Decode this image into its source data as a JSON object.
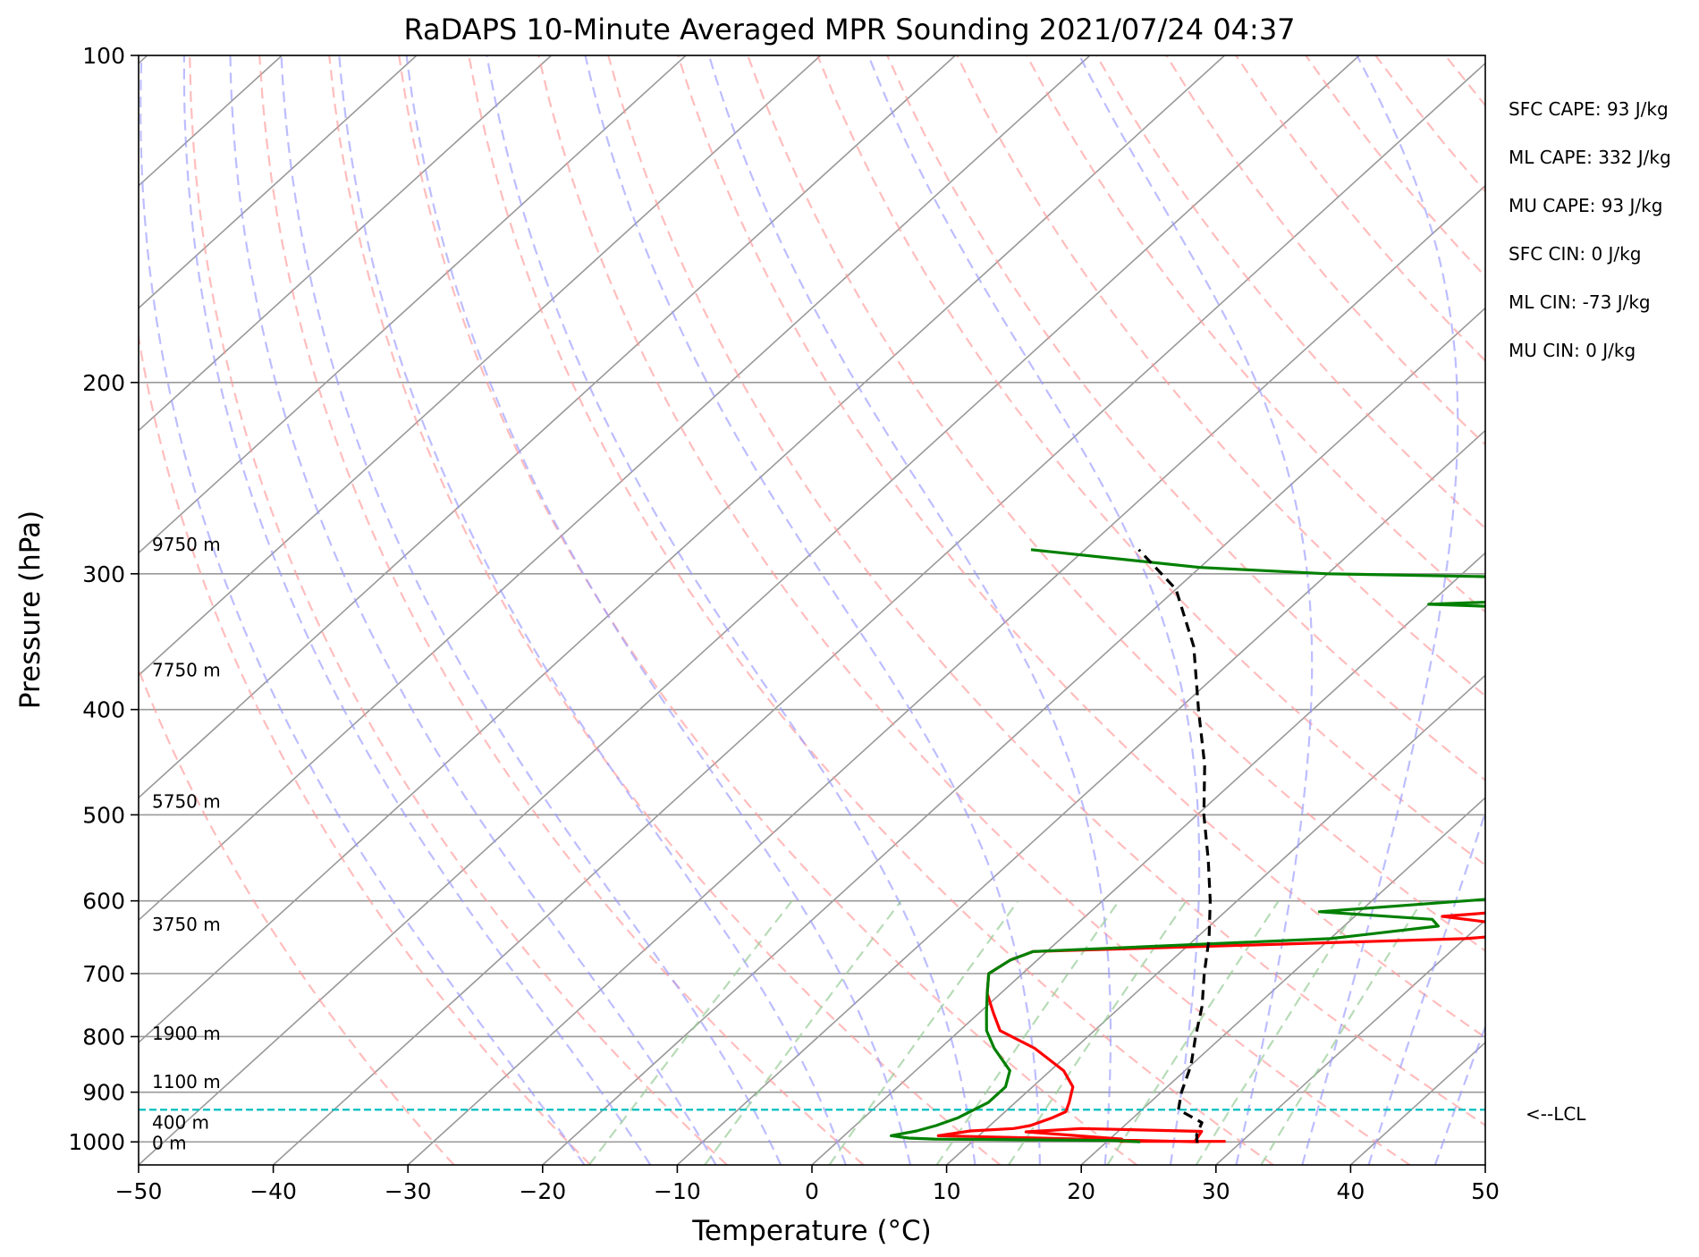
{
  "chart_data": {
    "type": "skew-t log-p sounding",
    "title": "RaDAPS 10-Minute Averaged MPR Sounding 2021/07/24 04:37",
    "xlabel": "Temperature (°C)",
    "ylabel": "Pressure (hPa)",
    "xlim": [
      -50,
      50
    ],
    "ylim": [
      1050,
      100
    ],
    "y_scale": "log",
    "grid": true,
    "x_ticks": [
      "−50",
      "−40",
      "−30",
      "−20",
      "−10",
      "0",
      "10",
      "20",
      "30",
      "40",
      "50"
    ],
    "x_tick_values": [
      -50,
      -40,
      -30,
      -20,
      -10,
      0,
      10,
      20,
      30,
      40,
      50
    ],
    "y_ticks": [
      "100",
      "200",
      "300",
      "400",
      "500",
      "600",
      "700",
      "800",
      "900",
      "1000"
    ],
    "y_tick_values": [
      100,
      200,
      300,
      400,
      500,
      600,
      700,
      800,
      900,
      1000
    ],
    "height_labels": [
      {
        "text": "9750 m",
        "p": 282
      },
      {
        "text": "7750 m",
        "p": 368
      },
      {
        "text": "5750 m",
        "p": 486
      },
      {
        "text": "3750 m",
        "p": 631
      },
      {
        "text": "1900 m",
        "p": 795
      },
      {
        "text": "1100 m",
        "p": 880
      },
      {
        "text": "400 m",
        "p": 960
      },
      {
        "text": "0 m",
        "p": 1002
      }
    ],
    "lcl": {
      "label": "<--LCL",
      "p": 934
    },
    "colors": {
      "temperature": "#ff0000",
      "dewpoint": "#008000",
      "parcel": "#000000",
      "lcl": "#00bfbf",
      "dry_adiabat": "#ff9999",
      "moist_adiabat": "#9999ff",
      "mixing_ratio": "#99cc99",
      "isotherm": "#999999"
    },
    "series": [
      {
        "key": "temperature",
        "points": [
          [
            28.8,
            999
          ],
          [
            21.0,
            999
          ],
          [
            20.9,
            994
          ],
          [
            13.2,
            979
          ],
          [
            17.0,
            972
          ],
          [
            26.2,
            978
          ],
          [
            26.5,
            998
          ],
          [
            26.8,
            1000
          ],
          [
            7.0,
            987
          ],
          [
            9.0,
            977
          ],
          [
            12.0,
            972
          ],
          [
            13.0,
            966
          ],
          [
            14.0,
            950
          ],
          [
            14.5,
            938
          ],
          [
            14.0,
            920
          ],
          [
            13.0,
            890
          ],
          [
            11.0,
            860
          ],
          [
            7.0,
            820
          ],
          [
            3.0,
            790
          ],
          [
            1.0,
            760
          ],
          [
            -1.0,
            730
          ],
          [
            -2.5,
            700
          ],
          [
            -2.0,
            680
          ],
          [
            -1.0,
            668
          ],
          [
            30.0,
            650
          ],
          [
            36.5,
            640
          ],
          [
            26.5,
            620
          ],
          [
            45.0,
            593
          ],
          [
            50.0,
            573
          ],
          [
            48.0,
            548
          ],
          [
            43.0,
            535
          ],
          [
            31.0,
            502
          ],
          [
            44.0,
            490
          ],
          [
            31.5,
            470
          ],
          [
            40.0,
            447
          ],
          [
            41.0,
            430
          ],
          [
            38.5,
            414
          ],
          [
            34.8,
            396
          ],
          [
            32.0,
            385
          ],
          [
            29.7,
            374
          ],
          [
            27.0,
            365
          ],
          [
            28.0,
            354
          ],
          [
            28.0,
            341
          ],
          [
            26.0,
            327
          ],
          [
            24.0,
            313
          ],
          [
            21.5,
            300
          ],
          [
            18.5,
            285
          ]
        ]
      },
      {
        "key": "dewpoint",
        "points": [
          [
            22.5,
            1000
          ],
          [
            20.5,
            997
          ],
          [
            7.0,
            994
          ],
          [
            5.0,
            992
          ],
          [
            3.5,
            987
          ],
          [
            5.0,
            977
          ],
          [
            6.0,
            966
          ],
          [
            7.0,
            950
          ],
          [
            8.0,
            920
          ],
          [
            8.0,
            890
          ],
          [
            7.0,
            860
          ],
          [
            4.0,
            820
          ],
          [
            2.0,
            790
          ],
          [
            0.5,
            760
          ],
          [
            -1.0,
            730
          ],
          [
            -2.5,
            700
          ],
          [
            -2.0,
            680
          ],
          [
            -1.0,
            668
          ],
          [
            20.0,
            650
          ],
          [
            27.0,
            633
          ],
          [
            26.0,
            624
          ],
          [
            17.0,
            614
          ],
          [
            32.0,
            593
          ],
          [
            35.0,
            570
          ],
          [
            34.0,
            546
          ],
          [
            33.0,
            535
          ],
          [
            30.5,
            502
          ],
          [
            33.0,
            490
          ],
          [
            32.5,
            470
          ],
          [
            42.0,
            447
          ],
          [
            40.0,
            430
          ],
          [
            34.8,
            407
          ],
          [
            29.7,
            384
          ],
          [
            26.5,
            365
          ],
          [
            28.0,
            354
          ],
          [
            32.0,
            330
          ],
          [
            0.0,
            320
          ],
          [
            20.0,
            313
          ],
          [
            10.0,
            303
          ],
          [
            -10.0,
            300
          ],
          [
            -20.0,
            296
          ],
          [
            -34.0,
            285
          ]
        ]
      },
      {
        "key": "parcel",
        "points": [
          [
            26.8,
            1002
          ],
          [
            26.1,
            985
          ],
          [
            25.5,
            960
          ],
          [
            22.7,
            934
          ],
          [
            21.5,
            900
          ],
          [
            20.0,
            850
          ],
          [
            18.0,
            800
          ],
          [
            16.0,
            750
          ],
          [
            13.5,
            700
          ],
          [
            11.0,
            650
          ],
          [
            8.0,
            600
          ],
          [
            4.5,
            550
          ],
          [
            0.5,
            500
          ],
          [
            -3.5,
            450
          ],
          [
            -8.5,
            400
          ],
          [
            -14.0,
            350
          ],
          [
            -20.0,
            310
          ],
          [
            -26.0,
            285
          ]
        ]
      }
    ],
    "stats": [
      "SFC CAPE: 93 J/kg",
      "ML CAPE: 332 J/kg",
      "MU CAPE: 93 J/kg",
      "SFC CIN: 0 J/kg",
      "ML CIN: -73 J/kg",
      "MU CIN: 0 J/kg"
    ]
  }
}
